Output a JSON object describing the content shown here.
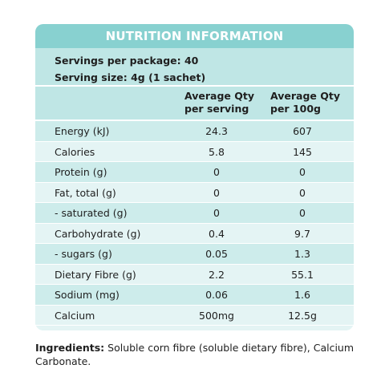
{
  "panel": {
    "title": "NUTRITION INFORMATION",
    "servings_per_package": "Servings per package: 40",
    "serving_size": "Serving size: 4g (1 sachet)",
    "col_per_serving": "Average Qty per serving",
    "col_per_100g": "Average Qty per 100g",
    "colors": {
      "header": "#88d1d0",
      "row_dark": "#cdeceb",
      "row_light": "#e4f4f4"
    }
  },
  "rows": [
    {
      "name": "Energy (kJ)",
      "per_serving": "24.3",
      "per_100g": "607"
    },
    {
      "name": "Calories",
      "per_serving": "5.8",
      "per_100g": "145"
    },
    {
      "name": "Protein (g)",
      "per_serving": "0",
      "per_100g": "0"
    },
    {
      "name": "Fat, total (g)",
      "per_serving": "0",
      "per_100g": "0"
    },
    {
      "name": "- saturated (g)",
      "per_serving": "0",
      "per_100g": "0"
    },
    {
      "name": "Carbohydrate (g)",
      "per_serving": "0.4",
      "per_100g": "9.7"
    },
    {
      "name": "- sugars (g)",
      "per_serving": "0.05",
      "per_100g": "1.3"
    },
    {
      "name": "Dietary Fibre (g)",
      "per_serving": "2.2",
      "per_100g": "55.1"
    },
    {
      "name": "Sodium (mg)",
      "per_serving": "0.06",
      "per_100g": "1.6"
    },
    {
      "name": "Calcium",
      "per_serving": "500mg",
      "per_100g": "12.5g"
    }
  ],
  "ingredients": {
    "label": "Ingredients:",
    "text": " Soluble corn fibre (soluble dietary fibre), Calcium Carbonate."
  }
}
